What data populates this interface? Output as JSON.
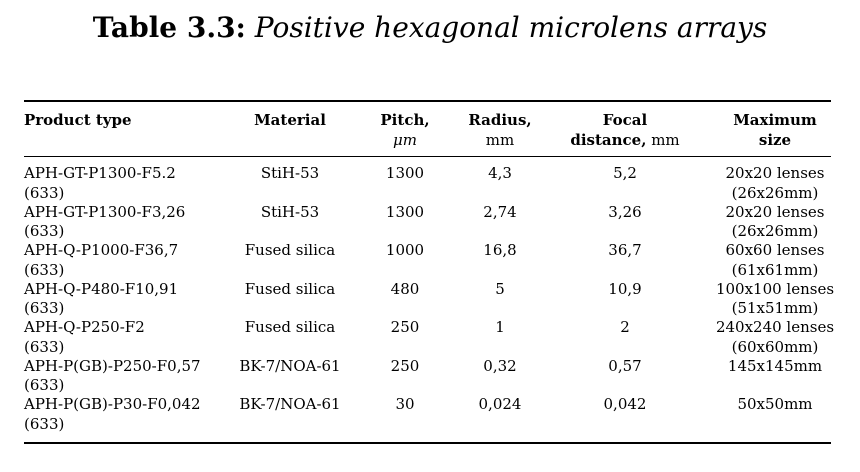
{
  "title": {
    "label": "Table 3.3:",
    "caption": "Positive hexagonal microlens arrays"
  },
  "headers": {
    "product": "Product type",
    "material": "Material",
    "pitch": "Pitch,",
    "pitch_unit": "μm",
    "radius": "Radius,",
    "radius_unit": "mm",
    "focal": "Focal",
    "focal2": "distance,",
    "focal_unit": "mm",
    "max": "Maximum",
    "max2": "size"
  },
  "rows": [
    {
      "product": "APH-GT-P1300-F5.2",
      "product2": "(633)",
      "material": "StiH-53",
      "pitch": "1300",
      "radius": "4,3",
      "focal": "5,2",
      "size": "20x20 lenses",
      "size2": "(26x26mm)"
    },
    {
      "product": "APH-GT-P1300-F3,26",
      "product2": "(633)",
      "material": "StiH-53",
      "pitch": "1300",
      "radius": "2,74",
      "focal": "3,26",
      "size": "20x20 lenses",
      "size2": "(26x26mm)"
    },
    {
      "product": "APH-Q-P1000-F36,7",
      "product2": "(633)",
      "material": "Fused silica",
      "pitch": "1000",
      "radius": "16,8",
      "focal": "36,7",
      "size": "60x60 lenses",
      "size2": "(61x61mm)"
    },
    {
      "product": "APH-Q-P480-F10,91",
      "product2": "(633)",
      "material": "Fused silica",
      "pitch": "480",
      "radius": "5",
      "focal": "10,9",
      "size": "100x100 lenses",
      "size2": "(51x51mm)"
    },
    {
      "product": "APH-Q-P250-F2",
      "product2": "(633)",
      "material": "Fused silica",
      "pitch": "250",
      "radius": "1",
      "focal": "2",
      "size": "240x240 lenses",
      "size2": "(60x60mm)"
    },
    {
      "product": "APH-P(GB)-P250-F0,57",
      "product2": "(633)",
      "material": "BK-7/NOA-61",
      "pitch": "250",
      "radius": "0,32",
      "focal": "0,57",
      "size": "145x145mm",
      "size2": ""
    },
    {
      "product": "APH-P(GB)-P30-F0,042",
      "product2": "(633)",
      "material": "BK-7/NOA-61",
      "pitch": "30",
      "radius": "0,024",
      "focal": "0,042",
      "size": "50x50mm",
      "size2": ""
    }
  ]
}
